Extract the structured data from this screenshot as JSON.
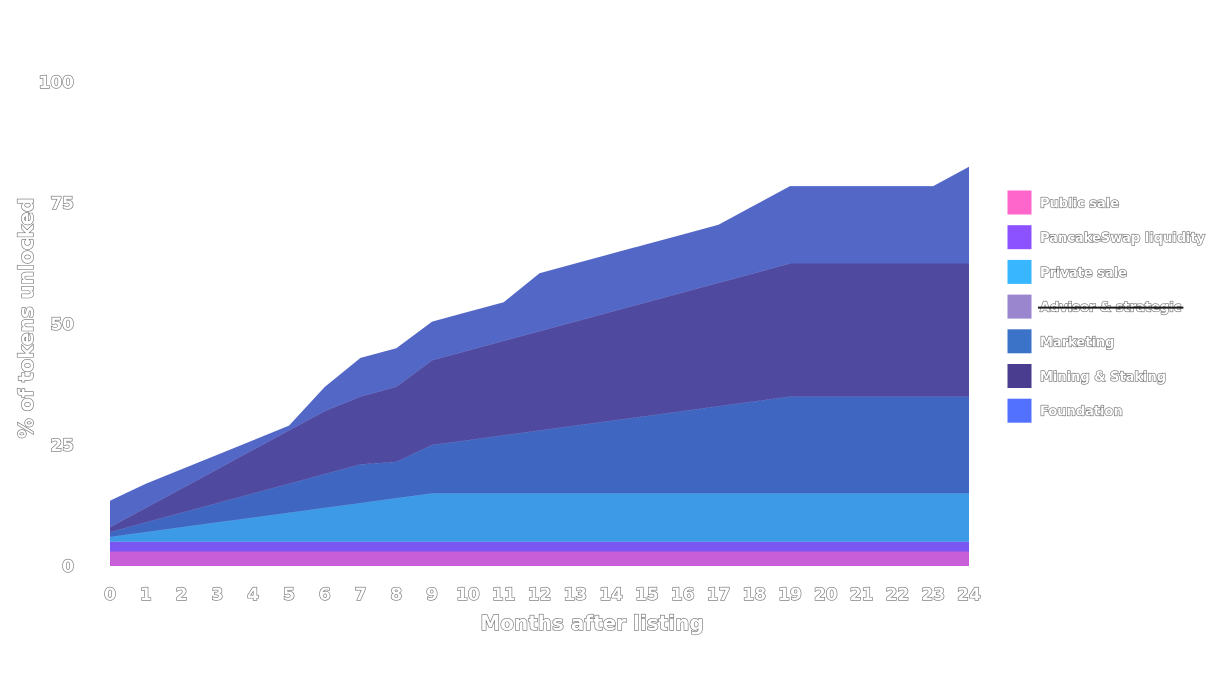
{
  "chart_data": {
    "type": "area",
    "stacked": true,
    "xlabel": "Months after listing",
    "ylabel": "% of tokens unlocked",
    "xlim": [
      0,
      24
    ],
    "ylim": [
      0,
      100
    ],
    "x": [
      0,
      1,
      2,
      3,
      4,
      5,
      6,
      7,
      8,
      9,
      10,
      11,
      12,
      13,
      14,
      15,
      16,
      17,
      18,
      19,
      20,
      21,
      22,
      23,
      24
    ],
    "x_ticks": [
      "0",
      "1",
      "2",
      "3",
      "4",
      "5",
      "6",
      "7",
      "8",
      "9",
      "10",
      "11",
      "12",
      "13",
      "14",
      "15",
      "16",
      "17",
      "18",
      "19",
      "20",
      "21",
      "22",
      "23",
      "24"
    ],
    "y_ticks": [
      "0",
      "25",
      "50",
      "75",
      "100"
    ],
    "grid": false,
    "legend_position": "right",
    "series": [
      {
        "name": "Public sale",
        "color": "#ff66cc",
        "fill": "#c85fd9",
        "hidden": false,
        "values": [
          3,
          3,
          3,
          3,
          3,
          3,
          3,
          3,
          3,
          3,
          3,
          3,
          3,
          3,
          3,
          3,
          3,
          3,
          3,
          3,
          3,
          3,
          3,
          3,
          3
        ]
      },
      {
        "name": "PancakeSwap liquidity",
        "color": "#8c52ff",
        "fill": "#7b55f2",
        "hidden": false,
        "values": [
          2,
          2,
          2,
          2,
          2,
          2,
          2,
          2,
          2,
          2,
          2,
          2,
          2,
          2,
          2,
          2,
          2,
          2,
          2,
          2,
          2,
          2,
          2,
          2,
          2
        ]
      },
      {
        "name": "Private sale",
        "color": "#38b6ff",
        "fill": "#3d9ae6",
        "hidden": false,
        "values": [
          1,
          2,
          3,
          4,
          5,
          6,
          7,
          8,
          9,
          10,
          10,
          10,
          10,
          10,
          10,
          10,
          10,
          10,
          10,
          10,
          10,
          10,
          10,
          10,
          10
        ]
      },
      {
        "name": "Advisor & strategic",
        "color": "#9a86cf",
        "fill": "#9a86cf",
        "hidden": true,
        "values": [
          0,
          0,
          0,
          0,
          0,
          0,
          0,
          0,
          0,
          0,
          0,
          0,
          0,
          0,
          0,
          0,
          0,
          0,
          0,
          0,
          0,
          0,
          0,
          0,
          0
        ]
      },
      {
        "name": "Marketing",
        "color": "#3b73c9",
        "fill": "#3f67c2",
        "hidden": false,
        "values": [
          1,
          2,
          3,
          4,
          5,
          6,
          7,
          8,
          7.5,
          10,
          11,
          12,
          13,
          14,
          15,
          16,
          17,
          18,
          19,
          20,
          20,
          20,
          20,
          20,
          20
        ]
      },
      {
        "name": "Mining & Staking",
        "color": "#4a3c8f",
        "fill": "#5049a0",
        "hidden": false,
        "values": [
          1,
          3,
          5,
          7,
          9,
          11,
          13,
          14,
          15.5,
          17.5,
          18.5,
          19.5,
          20.5,
          21.5,
          22.5,
          23.5,
          24.5,
          25.5,
          26.5,
          27.5,
          27.5,
          27.5,
          27.5,
          27.5,
          27.5
        ]
      },
      {
        "name": "Foundation",
        "color": "#5271ff",
        "fill": "#5367c7",
        "hidden": false,
        "values": [
          5.5,
          5,
          4,
          3,
          2,
          1,
          5,
          8,
          8,
          8,
          8,
          8,
          12,
          12,
          12,
          12,
          12,
          12,
          14,
          16,
          16,
          16,
          16,
          16,
          20
        ]
      }
    ]
  }
}
